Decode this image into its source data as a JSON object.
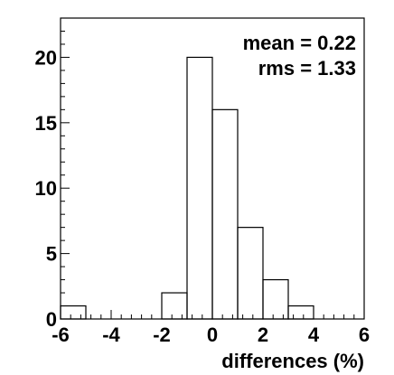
{
  "chart_data": {
    "type": "bar",
    "title": "",
    "xlabel": "differences (%)",
    "ylabel": "",
    "xlim": [
      -6,
      6
    ],
    "ylim": [
      0,
      23
    ],
    "x_ticks": [
      -6,
      -4,
      -2,
      0,
      2,
      4,
      6
    ],
    "y_ticks": [
      0,
      5,
      10,
      15,
      20
    ],
    "bin_width": 1,
    "bins": [
      {
        "x0": -6,
        "x1": -5,
        "count": 1
      },
      {
        "x0": -5,
        "x1": -4,
        "count": 0
      },
      {
        "x0": -4,
        "x1": -3,
        "count": 0
      },
      {
        "x0": -3,
        "x1": -2,
        "count": 0
      },
      {
        "x0": -2,
        "x1": -1,
        "count": 2
      },
      {
        "x0": -1,
        "x1": 0,
        "count": 20
      },
      {
        "x0": 0,
        "x1": 1,
        "count": 16
      },
      {
        "x0": 1,
        "x1": 2,
        "count": 7
      },
      {
        "x0": 2,
        "x1": 3,
        "count": 3
      },
      {
        "x0": 3,
        "x1": 4,
        "count": 1
      },
      {
        "x0": 4,
        "x1": 5,
        "count": 0
      },
      {
        "x0": 5,
        "x1": 6,
        "count": 0
      }
    ],
    "stats": {
      "mean_text": "mean = 0.22",
      "rms_text": "rms = 1.33"
    },
    "grid": false,
    "legend": "none"
  }
}
